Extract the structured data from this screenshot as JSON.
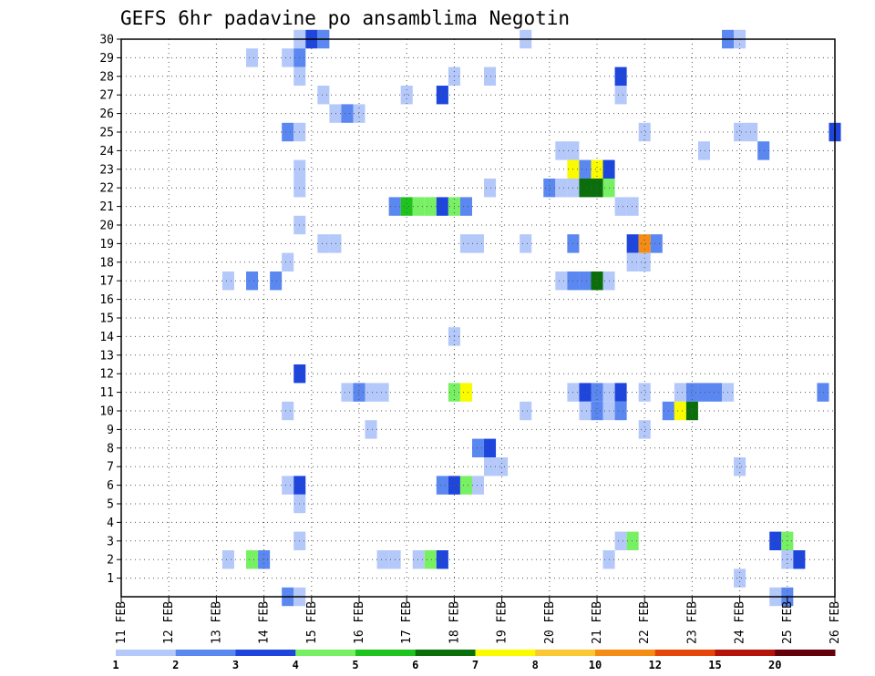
{
  "chart_data": {
    "type": "heatmap",
    "title": "GEFS 6hr padavine po ansamblima Negotin",
    "x_tick_labels": [
      "11 FEB",
      "12 FEB",
      "13 FEB",
      "14 FEB",
      "15 FEB",
      "16 FEB",
      "17 FEB",
      "18 FEB",
      "19 FEB",
      "20 FEB",
      "21 FEB",
      "22 FEB",
      "23 FEB",
      "24 FEB",
      "25 FEB",
      "26 FEB"
    ],
    "x_tick_days": [
      11,
      12,
      13,
      14,
      15,
      16,
      17,
      18,
      19,
      20,
      21,
      22,
      23,
      24,
      25,
      26
    ],
    "xlim_days": [
      11,
      26
    ],
    "y_tick_labels": [
      "1",
      "2",
      "3",
      "4",
      "5",
      "6",
      "7",
      "8",
      "9",
      "10",
      "11",
      "12",
      "13",
      "14",
      "15",
      "16",
      "17",
      "18",
      "19",
      "20",
      "21",
      "22",
      "23",
      "24",
      "25",
      "26",
      "27",
      "28",
      "29",
      "30"
    ],
    "ylim": [
      0,
      30
    ],
    "grid": true,
    "legend": {
      "placement": "bottom",
      "levels": [
        "1",
        "2",
        "3",
        "4",
        "5",
        "6",
        "7",
        "8",
        "10",
        "12",
        "15",
        "20"
      ],
      "colors": [
        "#b4c8fa",
        "#5a87f0",
        "#1e46dc",
        "#78f064",
        "#1ec31e",
        "#0a6e0a",
        "#fafa00",
        "#fac832",
        "#f58c14",
        "#e6460a",
        "#b4140a",
        "#64000a"
      ]
    },
    "cells": [
      {
        "day": 14.75,
        "member": 30,
        "cls": 0
      },
      {
        "day": 15.0,
        "member": 30,
        "cls": 2
      },
      {
        "day": 15.25,
        "member": 30,
        "cls": 1
      },
      {
        "day": 19.5,
        "member": 30,
        "cls": 0
      },
      {
        "day": 23.75,
        "member": 30,
        "cls": 1
      },
      {
        "day": 24.0,
        "member": 30,
        "cls": 0
      },
      {
        "day": 13.75,
        "member": 29,
        "cls": 0
      },
      {
        "day": 14.5,
        "member": 29,
        "cls": 0
      },
      {
        "day": 14.75,
        "member": 29,
        "cls": 1
      },
      {
        "day": 14.75,
        "member": 28,
        "cls": 0
      },
      {
        "day": 18.0,
        "member": 28,
        "cls": 0
      },
      {
        "day": 18.75,
        "member": 28,
        "cls": 0
      },
      {
        "day": 21.5,
        "member": 28,
        "cls": 2
      },
      {
        "day": 15.25,
        "member": 27,
        "cls": 0
      },
      {
        "day": 17.0,
        "member": 27,
        "cls": 0
      },
      {
        "day": 17.75,
        "member": 27,
        "cls": 2
      },
      {
        "day": 21.5,
        "member": 27,
        "cls": 0
      },
      {
        "day": 15.5,
        "member": 26,
        "cls": 0
      },
      {
        "day": 15.75,
        "member": 26,
        "cls": 1
      },
      {
        "day": 16.0,
        "member": 26,
        "cls": 0
      },
      {
        "day": 14.5,
        "member": 25,
        "cls": 1
      },
      {
        "day": 14.75,
        "member": 25,
        "cls": 0
      },
      {
        "day": 22.0,
        "member": 25,
        "cls": 0
      },
      {
        "day": 24.0,
        "member": 25,
        "cls": 0
      },
      {
        "day": 24.25,
        "member": 25,
        "cls": 0
      },
      {
        "day": 26.0,
        "member": 25,
        "cls": 2
      },
      {
        "day": 20.25,
        "member": 24,
        "cls": 0
      },
      {
        "day": 20.5,
        "member": 24,
        "cls": 0
      },
      {
        "day": 23.25,
        "member": 24,
        "cls": 0
      },
      {
        "day": 24.5,
        "member": 24,
        "cls": 1
      },
      {
        "day": 14.75,
        "member": 23,
        "cls": 0
      },
      {
        "day": 20.5,
        "member": 23,
        "cls": 6
      },
      {
        "day": 20.75,
        "member": 23,
        "cls": 1
      },
      {
        "day": 21.0,
        "member": 23,
        "cls": 6
      },
      {
        "day": 21.25,
        "member": 23,
        "cls": 2
      },
      {
        "day": 14.75,
        "member": 22,
        "cls": 0
      },
      {
        "day": 18.75,
        "member": 22,
        "cls": 0
      },
      {
        "day": 20.0,
        "member": 22,
        "cls": 1
      },
      {
        "day": 20.25,
        "member": 22,
        "cls": 0
      },
      {
        "day": 20.5,
        "member": 22,
        "cls": 0
      },
      {
        "day": 20.75,
        "member": 22,
        "cls": 5
      },
      {
        "day": 21.0,
        "member": 22,
        "cls": 5
      },
      {
        "day": 21.25,
        "member": 22,
        "cls": 3
      },
      {
        "day": 16.75,
        "member": 21,
        "cls": 1
      },
      {
        "day": 17.0,
        "member": 21,
        "cls": 4
      },
      {
        "day": 17.25,
        "member": 21,
        "cls": 3
      },
      {
        "day": 17.5,
        "member": 21,
        "cls": 3
      },
      {
        "day": 17.75,
        "member": 21,
        "cls": 2
      },
      {
        "day": 18.0,
        "member": 21,
        "cls": 3
      },
      {
        "day": 18.25,
        "member": 21,
        "cls": 1
      },
      {
        "day": 21.5,
        "member": 21,
        "cls": 0
      },
      {
        "day": 21.75,
        "member": 21,
        "cls": 0
      },
      {
        "day": 14.75,
        "member": 20,
        "cls": 0
      },
      {
        "day": 15.25,
        "member": 19,
        "cls": 0
      },
      {
        "day": 15.5,
        "member": 19,
        "cls": 0
      },
      {
        "day": 18.25,
        "member": 19,
        "cls": 0
      },
      {
        "day": 18.5,
        "member": 19,
        "cls": 0
      },
      {
        "day": 19.5,
        "member": 19,
        "cls": 0
      },
      {
        "day": 20.5,
        "member": 19,
        "cls": 1
      },
      {
        "day": 21.75,
        "member": 19,
        "cls": 2
      },
      {
        "day": 22.0,
        "member": 19,
        "cls": 8
      },
      {
        "day": 22.25,
        "member": 19,
        "cls": 1
      },
      {
        "day": 14.5,
        "member": 18,
        "cls": 0
      },
      {
        "day": 21.75,
        "member": 18,
        "cls": 0
      },
      {
        "day": 22.0,
        "member": 18,
        "cls": 0
      },
      {
        "day": 13.25,
        "member": 17,
        "cls": 0
      },
      {
        "day": 13.75,
        "member": 17,
        "cls": 1
      },
      {
        "day": 14.25,
        "member": 17,
        "cls": 1
      },
      {
        "day": 20.25,
        "member": 17,
        "cls": 0
      },
      {
        "day": 20.5,
        "member": 17,
        "cls": 1
      },
      {
        "day": 20.75,
        "member": 17,
        "cls": 1
      },
      {
        "day": 21.0,
        "member": 17,
        "cls": 5
      },
      {
        "day": 21.25,
        "member": 17,
        "cls": 0
      },
      {
        "day": 18.0,
        "member": 14,
        "cls": 0
      },
      {
        "day": 14.75,
        "member": 12,
        "cls": 2
      },
      {
        "day": 15.75,
        "member": 11,
        "cls": 0
      },
      {
        "day": 16.0,
        "member": 11,
        "cls": 1
      },
      {
        "day": 16.25,
        "member": 11,
        "cls": 0
      },
      {
        "day": 16.5,
        "member": 11,
        "cls": 0
      },
      {
        "day": 18.0,
        "member": 11,
        "cls": 3
      },
      {
        "day": 18.25,
        "member": 11,
        "cls": 6
      },
      {
        "day": 20.5,
        "member": 11,
        "cls": 0
      },
      {
        "day": 20.75,
        "member": 11,
        "cls": 2
      },
      {
        "day": 21.0,
        "member": 11,
        "cls": 1
      },
      {
        "day": 21.25,
        "member": 11,
        "cls": 0
      },
      {
        "day": 21.5,
        "member": 11,
        "cls": 2
      },
      {
        "day": 22.0,
        "member": 11,
        "cls": 0
      },
      {
        "day": 22.75,
        "member": 11,
        "cls": 0
      },
      {
        "day": 23.0,
        "member": 11,
        "cls": 1
      },
      {
        "day": 23.25,
        "member": 11,
        "cls": 1
      },
      {
        "day": 23.5,
        "member": 11,
        "cls": 1
      },
      {
        "day": 23.75,
        "member": 11,
        "cls": 0
      },
      {
        "day": 25.75,
        "member": 11,
        "cls": 1
      },
      {
        "day": 14.5,
        "member": 10,
        "cls": 0
      },
      {
        "day": 19.5,
        "member": 10,
        "cls": 0
      },
      {
        "day": 20.75,
        "member": 10,
        "cls": 0
      },
      {
        "day": 21.0,
        "member": 10,
        "cls": 1
      },
      {
        "day": 21.25,
        "member": 10,
        "cls": 0
      },
      {
        "day": 21.5,
        "member": 10,
        "cls": 1
      },
      {
        "day": 22.5,
        "member": 10,
        "cls": 1
      },
      {
        "day": 22.75,
        "member": 10,
        "cls": 6
      },
      {
        "day": 23.0,
        "member": 10,
        "cls": 5
      },
      {
        "day": 16.25,
        "member": 9,
        "cls": 0
      },
      {
        "day": 22.0,
        "member": 9,
        "cls": 0
      },
      {
        "day": 18.5,
        "member": 8,
        "cls": 1
      },
      {
        "day": 18.75,
        "member": 8,
        "cls": 2
      },
      {
        "day": 18.75,
        "member": 7,
        "cls": 0
      },
      {
        "day": 19.0,
        "member": 7,
        "cls": 0
      },
      {
        "day": 24.0,
        "member": 7,
        "cls": 0
      },
      {
        "day": 14.5,
        "member": 6,
        "cls": 0
      },
      {
        "day": 14.75,
        "member": 6,
        "cls": 2
      },
      {
        "day": 17.75,
        "member": 6,
        "cls": 1
      },
      {
        "day": 18.0,
        "member": 6,
        "cls": 2
      },
      {
        "day": 18.25,
        "member": 6,
        "cls": 3
      },
      {
        "day": 18.5,
        "member": 6,
        "cls": 0
      },
      {
        "day": 14.75,
        "member": 5,
        "cls": 0
      },
      {
        "day": 14.75,
        "member": 3,
        "cls": 0
      },
      {
        "day": 21.5,
        "member": 3,
        "cls": 0
      },
      {
        "day": 21.75,
        "member": 3,
        "cls": 3
      },
      {
        "day": 24.75,
        "member": 3,
        "cls": 2
      },
      {
        "day": 25.0,
        "member": 3,
        "cls": 3
      },
      {
        "day": 13.25,
        "member": 2,
        "cls": 0
      },
      {
        "day": 13.75,
        "member": 2,
        "cls": 3
      },
      {
        "day": 14.0,
        "member": 2,
        "cls": 1
      },
      {
        "day": 16.5,
        "member": 2,
        "cls": 0
      },
      {
        "day": 16.75,
        "member": 2,
        "cls": 0
      },
      {
        "day": 17.25,
        "member": 2,
        "cls": 0
      },
      {
        "day": 17.5,
        "member": 2,
        "cls": 3
      },
      {
        "day": 17.75,
        "member": 2,
        "cls": 2
      },
      {
        "day": 21.25,
        "member": 2,
        "cls": 0
      },
      {
        "day": 25.0,
        "member": 2,
        "cls": 0
      },
      {
        "day": 25.25,
        "member": 2,
        "cls": 2
      },
      {
        "day": 24.0,
        "member": 1,
        "cls": 0
      },
      {
        "day": 14.5,
        "member": 0,
        "cls": 1
      },
      {
        "day": 14.75,
        "member": 0,
        "cls": 0
      },
      {
        "day": 24.75,
        "member": 0,
        "cls": 0
      },
      {
        "day": 25.0,
        "member": 0,
        "cls": 1
      }
    ]
  }
}
